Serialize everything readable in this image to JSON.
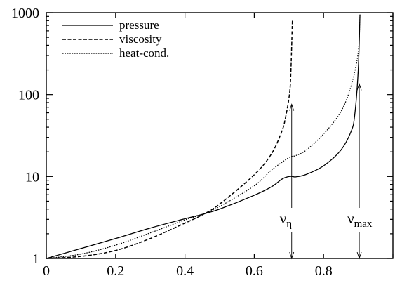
{
  "chart_data": {
    "type": "line",
    "title": "",
    "xlabel": "",
    "ylabel": "",
    "xlim": [
      0,
      1
    ],
    "ylim": [
      1,
      1000
    ],
    "y_scale": "log",
    "grid": false,
    "legend_position": "top-left",
    "x_ticks": [
      "0",
      "0.2",
      "0.4",
      "0.6",
      "0.8"
    ],
    "y_ticks": [
      "1",
      "10",
      "100",
      "1000"
    ],
    "series": [
      {
        "name": "pressure",
        "style": "solid",
        "x": [
          0,
          0.1,
          0.2,
          0.3,
          0.4,
          0.45,
          0.5,
          0.6,
          0.65,
          0.68,
          0.7,
          0.71,
          0.72,
          0.75,
          0.8,
          0.85,
          0.88,
          0.89,
          0.9,
          0.905
        ],
        "y": [
          1.0,
          1.32,
          1.75,
          2.35,
          3.05,
          3.45,
          4.0,
          5.9,
          7.5,
          9.3,
          10.0,
          10.0,
          9.9,
          10.6,
          13.5,
          21,
          36,
          57,
          200,
          950
        ]
      },
      {
        "name": "viscosity",
        "style": "dashed",
        "x": [
          0,
          0.1,
          0.2,
          0.3,
          0.4,
          0.45,
          0.5,
          0.6,
          0.65,
          0.68,
          0.69,
          0.7,
          0.705,
          0.71
        ],
        "y": [
          1.0,
          1.06,
          1.25,
          1.75,
          2.7,
          3.4,
          4.6,
          10.5,
          19,
          36,
          52,
          90,
          160,
          800
        ]
      },
      {
        "name": "heat-cond.",
        "style": "dotted",
        "x": [
          0,
          0.1,
          0.2,
          0.3,
          0.4,
          0.45,
          0.5,
          0.6,
          0.65,
          0.7,
          0.72,
          0.75,
          0.8,
          0.85,
          0.88,
          0.9,
          0.905
        ],
        "y": [
          1.0,
          1.13,
          1.45,
          2.05,
          2.95,
          3.45,
          4.3,
          7.7,
          12.0,
          17.0,
          18.0,
          21,
          33,
          62,
          130,
          330,
          950
        ]
      }
    ],
    "annotations": [
      {
        "id": "nu-eta",
        "symbol": "ν",
        "subscript": "η",
        "x": 0.71,
        "arrow_top_y": 76
      },
      {
        "id": "nu-max",
        "symbol": "ν",
        "subscript": "max",
        "x": 0.905,
        "arrow_top_y": 135
      }
    ]
  }
}
